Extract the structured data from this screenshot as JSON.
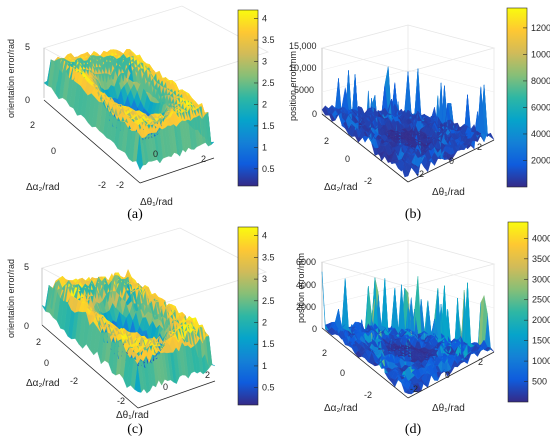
{
  "colors": {
    "parula": [
      "#352a87",
      "#0f5cdd",
      "#1481d6",
      "#06a4ca",
      "#2eb7a4",
      "#87bf77",
      "#d1bb59",
      "#fec832",
      "#f9fb0e"
    ]
  },
  "chart_data": [
    {
      "panel": "a",
      "type": "surface3d",
      "caption": "(a)",
      "zlabel": "orientation error/rad",
      "xlabel": "Δθ₁/rad",
      "ylabel": "Δα₂/rad",
      "zticks": [
        "0",
        "5"
      ],
      "xticks": [
        "0",
        "2",
        "-2"
      ],
      "yticks": [
        "2",
        "0",
        "-2"
      ],
      "colorbar_ticks": [
        "0.5",
        "1",
        "1.5",
        "2",
        "2.5",
        "3",
        "3.5",
        "4"
      ],
      "clim": [
        0.1,
        4.2
      ],
      "surface": {
        "shape": "ring",
        "x_range": [
          -3,
          3
        ],
        "y_range": [
          -3,
          3
        ],
        "inner_level": 0.2,
        "plateau_level": 4.0
      }
    },
    {
      "panel": "b",
      "type": "surface3d",
      "caption": "(b)",
      "zlabel": "position error/mm",
      "xlabel": "Δθ₁/rad",
      "ylabel": "Δα₂/rad",
      "zticks": [
        "0",
        "5000",
        "10,000",
        "15,000"
      ],
      "xticks": [
        "-2",
        "0",
        "2"
      ],
      "yticks": [
        "2",
        "0",
        "-2"
      ],
      "colorbar_ticks": [
        "2000",
        "4000",
        "6000",
        "8000",
        "10000",
        "12000"
      ],
      "clim": [
        0,
        13500
      ],
      "surface": {
        "shape": "spiky-floor",
        "x_range": [
          -3,
          3
        ],
        "y_range": [
          -3,
          3
        ],
        "peak_level": 9500
      }
    },
    {
      "panel": "c",
      "type": "surface3d",
      "caption": "(c)",
      "zlabel": "orientation error/rad",
      "xlabel": "Δθ₁/rad",
      "ylabel": "Δα₂/rad",
      "zticks": [
        "0",
        "5"
      ],
      "xticks": [
        "-2",
        "0",
        "2"
      ],
      "yticks": [
        "2",
        "0",
        "-2"
      ],
      "colorbar_ticks": [
        "0.5",
        "1",
        "1.5",
        "2",
        "2.5",
        "3",
        "3.5",
        "4"
      ],
      "clim": [
        0.1,
        4.2
      ],
      "surface": {
        "shape": "ring",
        "x_range": [
          -3,
          3
        ],
        "y_range": [
          -3,
          3
        ],
        "inner_level": 0.2,
        "plateau_level": 4.0
      }
    },
    {
      "panel": "d",
      "type": "surface3d",
      "caption": "(d)",
      "zlabel": "position error/mm",
      "xlabel": "Δθ₁/rad",
      "ylabel": "Δα₂/rad",
      "zticks": [
        "0",
        "2000",
        "4000",
        "6000"
      ],
      "xticks": [
        "-2",
        "0",
        "2"
      ],
      "yticks": [
        "2",
        "0",
        "-2"
      ],
      "colorbar_ticks": [
        "500",
        "1000",
        "1500",
        "2000",
        "2500",
        "3000",
        "3500",
        "4000"
      ],
      "clim": [
        0,
        4400
      ],
      "surface": {
        "shape": "spiky-floor",
        "x_range": [
          -3,
          3
        ],
        "y_range": [
          -3,
          3
        ],
        "peak_level": 5800
      }
    }
  ]
}
